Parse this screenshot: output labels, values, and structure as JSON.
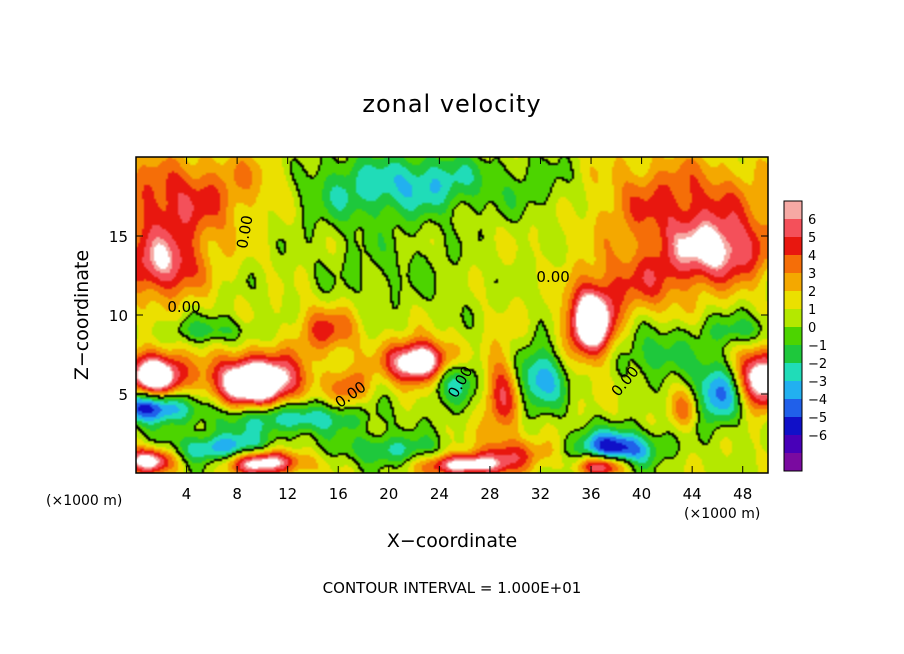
{
  "chart_data": {
    "type": "heatmap",
    "title": "zonal velocity",
    "xlabel": "X−coordinate",
    "ylabel": "Z−coordinate",
    "x_unit": "(×1000 m)",
    "y_unit": "(×1000 m)",
    "xlim": [
      0,
      50
    ],
    "ylim": [
      0,
      20
    ],
    "x_ticks": [
      4,
      8,
      12,
      16,
      20,
      24,
      28,
      32,
      36,
      40,
      44,
      48
    ],
    "y_ticks": [
      5,
      10,
      15
    ],
    "footer": "CONTOUR INTERVAL = 1.000E+01",
    "contour_label": "0.00",
    "colorbar": {
      "levels": [
        6,
        5,
        4,
        3,
        2,
        1,
        0,
        -1,
        -2,
        -3,
        -4,
        -5,
        -6
      ],
      "labels": [
        "6",
        "5",
        "4",
        "3",
        "2",
        "1",
        "0",
        "−1",
        "−2",
        "−3",
        "−4",
        "−5",
        "−6"
      ],
      "colors": [
        "#f6a9a4",
        "#f4505a",
        "#e8170f",
        "#f56e08",
        "#f4a800",
        "#ebe000",
        "#b4e800",
        "#4cd400",
        "#1ec83c",
        "#20dcb8",
        "#22b0f0",
        "#2060ea",
        "#1010c8",
        "#4800b8",
        "#7a0aa0"
      ]
    },
    "field": {
      "background": 0.8,
      "blobs": [
        {
          "x": 3,
          "z": 17,
          "v": 4,
          "sx": 5,
          "sz": 3
        },
        {
          "x": 2,
          "z": 13,
          "v": 5,
          "sx": 3,
          "sz": 2
        },
        {
          "x": 10,
          "z": 18.5,
          "v": 1.5,
          "sx": 4,
          "sz": 2
        },
        {
          "x": 18,
          "z": 18,
          "v": -3,
          "sx": 6,
          "sz": 2.2
        },
        {
          "x": 24,
          "z": 18.5,
          "v": -2.5,
          "sx": 4,
          "sz": 1.8
        },
        {
          "x": 32,
          "z": 18,
          "v": -1.5,
          "sx": 4,
          "sz": 2
        },
        {
          "x": 20,
          "z": 13,
          "v": -1,
          "sx": 6,
          "sz": 2.5
        },
        {
          "x": 43,
          "z": 17,
          "v": 3.5,
          "sx": 7,
          "sz": 3
        },
        {
          "x": 46,
          "z": 14,
          "v": 5.5,
          "sx": 4,
          "sz": 2
        },
        {
          "x": 40,
          "z": 12,
          "v": 3,
          "sx": 4,
          "sz": 2
        },
        {
          "x": 36,
          "z": 9.5,
          "v": 9,
          "sx": 1.8,
          "sz": 2.2
        },
        {
          "x": 1.5,
          "z": 6.2,
          "v": 9,
          "sx": 2.2,
          "sz": 1.4
        },
        {
          "x": 9.5,
          "z": 5.8,
          "v": 10,
          "sx": 3.3,
          "sz": 1.6
        },
        {
          "x": 22.5,
          "z": 7,
          "v": 9,
          "sx": 2.5,
          "sz": 1.3
        },
        {
          "x": 49.5,
          "z": 6,
          "v": 8,
          "sx": 1.8,
          "sz": 1.8
        },
        {
          "x": 15,
          "z": 9,
          "v": 3.5,
          "sx": 2.5,
          "sz": 1.5
        },
        {
          "x": 29,
          "z": 5,
          "v": 4,
          "sx": 1.5,
          "sz": 3
        },
        {
          "x": 17,
          "z": 5.5,
          "v": 3,
          "sx": 1.5,
          "sz": 1.3
        },
        {
          "x": 43.5,
          "z": 4,
          "v": 3,
          "sx": 1.3,
          "sz": 1.3
        },
        {
          "x": 1,
          "z": 4.2,
          "v": -7,
          "sx": 3,
          "sz": 1
        },
        {
          "x": 12,
          "z": 3.5,
          "v": -4,
          "sx": 6,
          "sz": 1
        },
        {
          "x": 25,
          "z": 6,
          "v": -4,
          "sx": 2,
          "sz": 1.5
        },
        {
          "x": 32,
          "z": 6,
          "v": -4.5,
          "sx": 2,
          "sz": 2
        },
        {
          "x": 38,
          "z": 1.5,
          "v": -7,
          "sx": 3,
          "sz": 1.2
        },
        {
          "x": 46,
          "z": 5,
          "v": -5,
          "sx": 2,
          "sz": 2
        },
        {
          "x": 41,
          "z": 7.5,
          "v": -2.5,
          "sx": 3,
          "sz": 1.5
        },
        {
          "x": 48,
          "z": 9,
          "v": -2,
          "sx": 4,
          "sz": 1
        },
        {
          "x": 6,
          "z": 9,
          "v": -2,
          "sx": 4,
          "sz": 0.8
        },
        {
          "x": 7,
          "z": 1.5,
          "v": -5,
          "sx": 4,
          "sz": 1
        },
        {
          "x": 20,
          "z": 1.5,
          "v": -3,
          "sx": 4,
          "sz": 1
        },
        {
          "x": 10,
          "z": 0.7,
          "v": 8,
          "sx": 3,
          "sz": 0.8
        },
        {
          "x": 26,
          "z": 0.5,
          "v": 7,
          "sx": 3,
          "sz": 0.7
        },
        {
          "x": 37,
          "z": 0.5,
          "v": 7,
          "sx": 2,
          "sz": 0.7
        },
        {
          "x": 1,
          "z": 0.8,
          "v": 7,
          "sx": 2,
          "sz": 0.8
        },
        {
          "x": 30,
          "z": 1.2,
          "v": 3,
          "sx": 3,
          "sz": 1
        }
      ]
    }
  }
}
